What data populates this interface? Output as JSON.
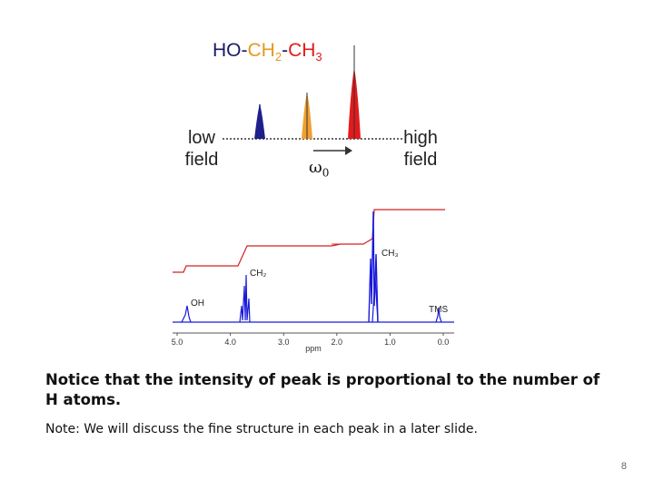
{
  "molecule": {
    "parts": [
      {
        "text": "HO-",
        "color": "#1a1a66"
      },
      {
        "text": "CH",
        "color": "#e39a1f"
      },
      {
        "text": "2",
        "color": "#e39a1f",
        "sub": true
      },
      {
        "text": "-",
        "color": "#1a1a66"
      },
      {
        "text": "CH",
        "color": "#e31a1c"
      },
      {
        "text": "3",
        "color": "#e31a1c",
        "sub": true
      }
    ]
  },
  "field_labels": {
    "low": "low field",
    "high": "high field"
  },
  "frequency_symbol": {
    "base": "ω",
    "sub": "0"
  },
  "stick_peaks": [
    {
      "group": "OH",
      "color": "#1f1f8c",
      "relative_height": 1
    },
    {
      "group": "CH2",
      "color": "#f0a030",
      "relative_height": 2
    },
    {
      "group": "CH3",
      "color": "#e31a1c",
      "relative_height": 3
    }
  ],
  "spectrum": {
    "x_ticks": [
      "5.0",
      "4.0",
      "3.0",
      "2.0",
      "1.0",
      "0.0"
    ],
    "x_label": "ppm",
    "peak_labels": {
      "oh": "OH",
      "ch2": "CH₂",
      "ch3": "CH₃",
      "tms": "TMS"
    },
    "peaks_ppm": {
      "oh": 4.7,
      "ch2": 3.7,
      "ch3": 1.2,
      "tms": 0.0
    },
    "integral_ratio": [
      1,
      2,
      3
    ],
    "colors": {
      "spectrum": "#1a1adb",
      "integral": "#d42020"
    }
  },
  "notice": "Notice that the intensity of peak is proportional to the number of H atoms.",
  "note": "Note:  We will discuss the fine structure in each peak in a later slide.",
  "page_number": "8"
}
